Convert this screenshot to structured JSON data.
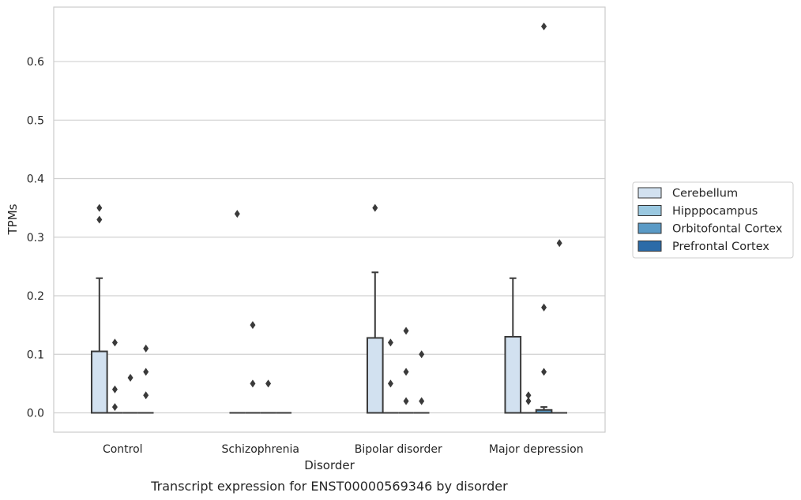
{
  "caption": "Transcript expression for ENST00000569346 by disorder",
  "chart_data": {
    "type": "box",
    "title": "",
    "xlabel": "Disorder",
    "ylabel": "TPMs",
    "ylim": [
      -0.033,
      0.693
    ],
    "yticks": [
      0.0,
      0.1,
      0.2,
      0.3,
      0.4,
      0.5,
      0.6
    ],
    "ytick_labels": [
      "0.0",
      "0.1",
      "0.2",
      "0.3",
      "0.4",
      "0.5",
      "0.6"
    ],
    "grid": "horizontal",
    "legend_position": "right",
    "categories": [
      "Control",
      "Schizophrenia",
      "Bipolar disorder",
      "Major depression"
    ],
    "series": [
      {
        "name": "Cerebellum",
        "color": "#d2e1f0",
        "boxes": [
          {
            "q1": 0.0,
            "median": 0.0,
            "q3": 0.105,
            "whisker_low": 0.0,
            "whisker_high": 0.23,
            "outliers": [
              0.33,
              0.35
            ]
          },
          {
            "q1": 0.0,
            "median": 0.0,
            "q3": 0.0,
            "whisker_low": 0.0,
            "whisker_high": 0.0,
            "outliers": [
              0.34
            ]
          },
          {
            "q1": 0.0,
            "median": 0.0,
            "q3": 0.128,
            "whisker_low": 0.0,
            "whisker_high": 0.24,
            "outliers": [
              0.35
            ]
          },
          {
            "q1": 0.0,
            "median": 0.0,
            "q3": 0.13,
            "whisker_low": 0.0,
            "whisker_high": 0.23,
            "outliers": []
          }
        ]
      },
      {
        "name": "Hipppocampus",
        "color": "#9ac8e0",
        "boxes": [
          {
            "q1": 0.0,
            "median": 0.0,
            "q3": 0.0,
            "whisker_low": 0.0,
            "whisker_high": 0.0,
            "outliers": [
              0.01,
              0.04,
              0.12
            ]
          },
          {
            "q1": 0.0,
            "median": 0.0,
            "q3": 0.0,
            "whisker_low": 0.0,
            "whisker_high": 0.0,
            "outliers": [
              0.05,
              0.15
            ]
          },
          {
            "q1": 0.0,
            "median": 0.0,
            "q3": 0.0,
            "whisker_low": 0.0,
            "whisker_high": 0.0,
            "outliers": [
              0.05,
              0.12
            ]
          },
          {
            "q1": 0.0,
            "median": 0.0,
            "q3": 0.0,
            "whisker_low": 0.0,
            "whisker_high": 0.0,
            "outliers": [
              0.02,
              0.03
            ]
          }
        ]
      },
      {
        "name": "Orbitofontal Cortex",
        "color": "#5a9ac6",
        "boxes": [
          {
            "q1": 0.0,
            "median": 0.0,
            "q3": 0.0,
            "whisker_low": 0.0,
            "whisker_high": 0.0,
            "outliers": [
              0.06
            ]
          },
          {
            "q1": 0.0,
            "median": 0.0,
            "q3": 0.0,
            "whisker_low": 0.0,
            "whisker_high": 0.0,
            "outliers": [
              0.05
            ]
          },
          {
            "q1": 0.0,
            "median": 0.0,
            "q3": 0.0,
            "whisker_low": 0.0,
            "whisker_high": 0.0,
            "outliers": [
              0.02,
              0.07,
              0.14
            ]
          },
          {
            "q1": 0.0,
            "median": 0.0,
            "q3": 0.005,
            "whisker_low": 0.0,
            "whisker_high": 0.01,
            "outliers": [
              0.07,
              0.18,
              0.66
            ]
          }
        ]
      },
      {
        "name": "Prefrontal Cortex",
        "color": "#2b6ba8",
        "boxes": [
          {
            "q1": 0.0,
            "median": 0.0,
            "q3": 0.0,
            "whisker_low": 0.0,
            "whisker_high": 0.0,
            "outliers": [
              0.03,
              0.07,
              0.11
            ]
          },
          {
            "q1": 0.0,
            "median": 0.0,
            "q3": 0.0,
            "whisker_low": 0.0,
            "whisker_high": 0.0,
            "outliers": []
          },
          {
            "q1": 0.0,
            "median": 0.0,
            "q3": 0.0,
            "whisker_low": 0.0,
            "whisker_high": 0.0,
            "outliers": [
              0.02,
              0.1
            ]
          },
          {
            "q1": 0.0,
            "median": 0.0,
            "q3": 0.0,
            "whisker_low": 0.0,
            "whisker_high": 0.0,
            "outliers": [
              0.29
            ]
          }
        ]
      }
    ]
  }
}
